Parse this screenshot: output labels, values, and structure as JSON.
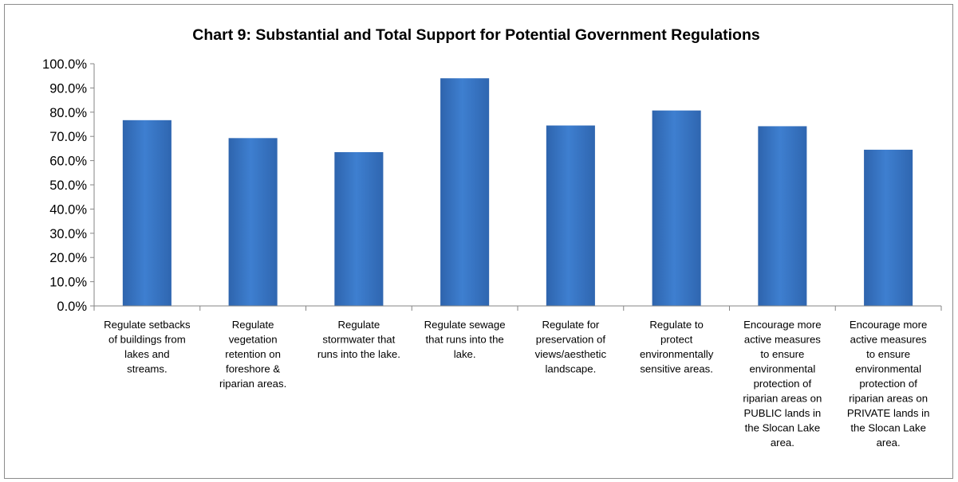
{
  "chart_data": {
    "type": "bar",
    "title": "Chart 9: Substantial and Total Support for Potential Government Regulations",
    "xlabel": "",
    "ylabel": "",
    "ylim": [
      0,
      100
    ],
    "y_ticks": [
      "0.0%",
      "10.0%",
      "20.0%",
      "30.0%",
      "40.0%",
      "50.0%",
      "60.0%",
      "70.0%",
      "80.0%",
      "90.0%",
      "100.0%"
    ],
    "grid": false,
    "legend": "none",
    "bar_color": "#3b78c7",
    "categories": [
      [
        "Regulate setbacks",
        "of buildings from",
        "lakes and",
        "streams."
      ],
      [
        "Regulate",
        "vegetation",
        "retention on",
        "foreshore &",
        "riparian areas."
      ],
      [
        "Regulate",
        "stormwater that",
        "runs into the lake."
      ],
      [
        "Regulate sewage",
        "that runs into the",
        "lake."
      ],
      [
        "Regulate for",
        "preservation of",
        "views/aesthetic",
        "landscape."
      ],
      [
        "Regulate to",
        "protect",
        "environmentally",
        "sensitive areas."
      ],
      [
        "Encourage more",
        "active measures",
        "to ensure",
        "environmental",
        "protection of",
        "riparian areas on",
        "PUBLIC lands in",
        "the Slocan Lake",
        "area."
      ],
      [
        "Encourage more",
        "active measures",
        "to ensure",
        "environmental",
        "protection of",
        "riparian areas on",
        "PRIVATE lands in",
        "the Slocan Lake",
        "area."
      ]
    ],
    "values": [
      76.7,
      69.3,
      63.5,
      94.0,
      74.5,
      80.7,
      74.2,
      64.5
    ]
  }
}
